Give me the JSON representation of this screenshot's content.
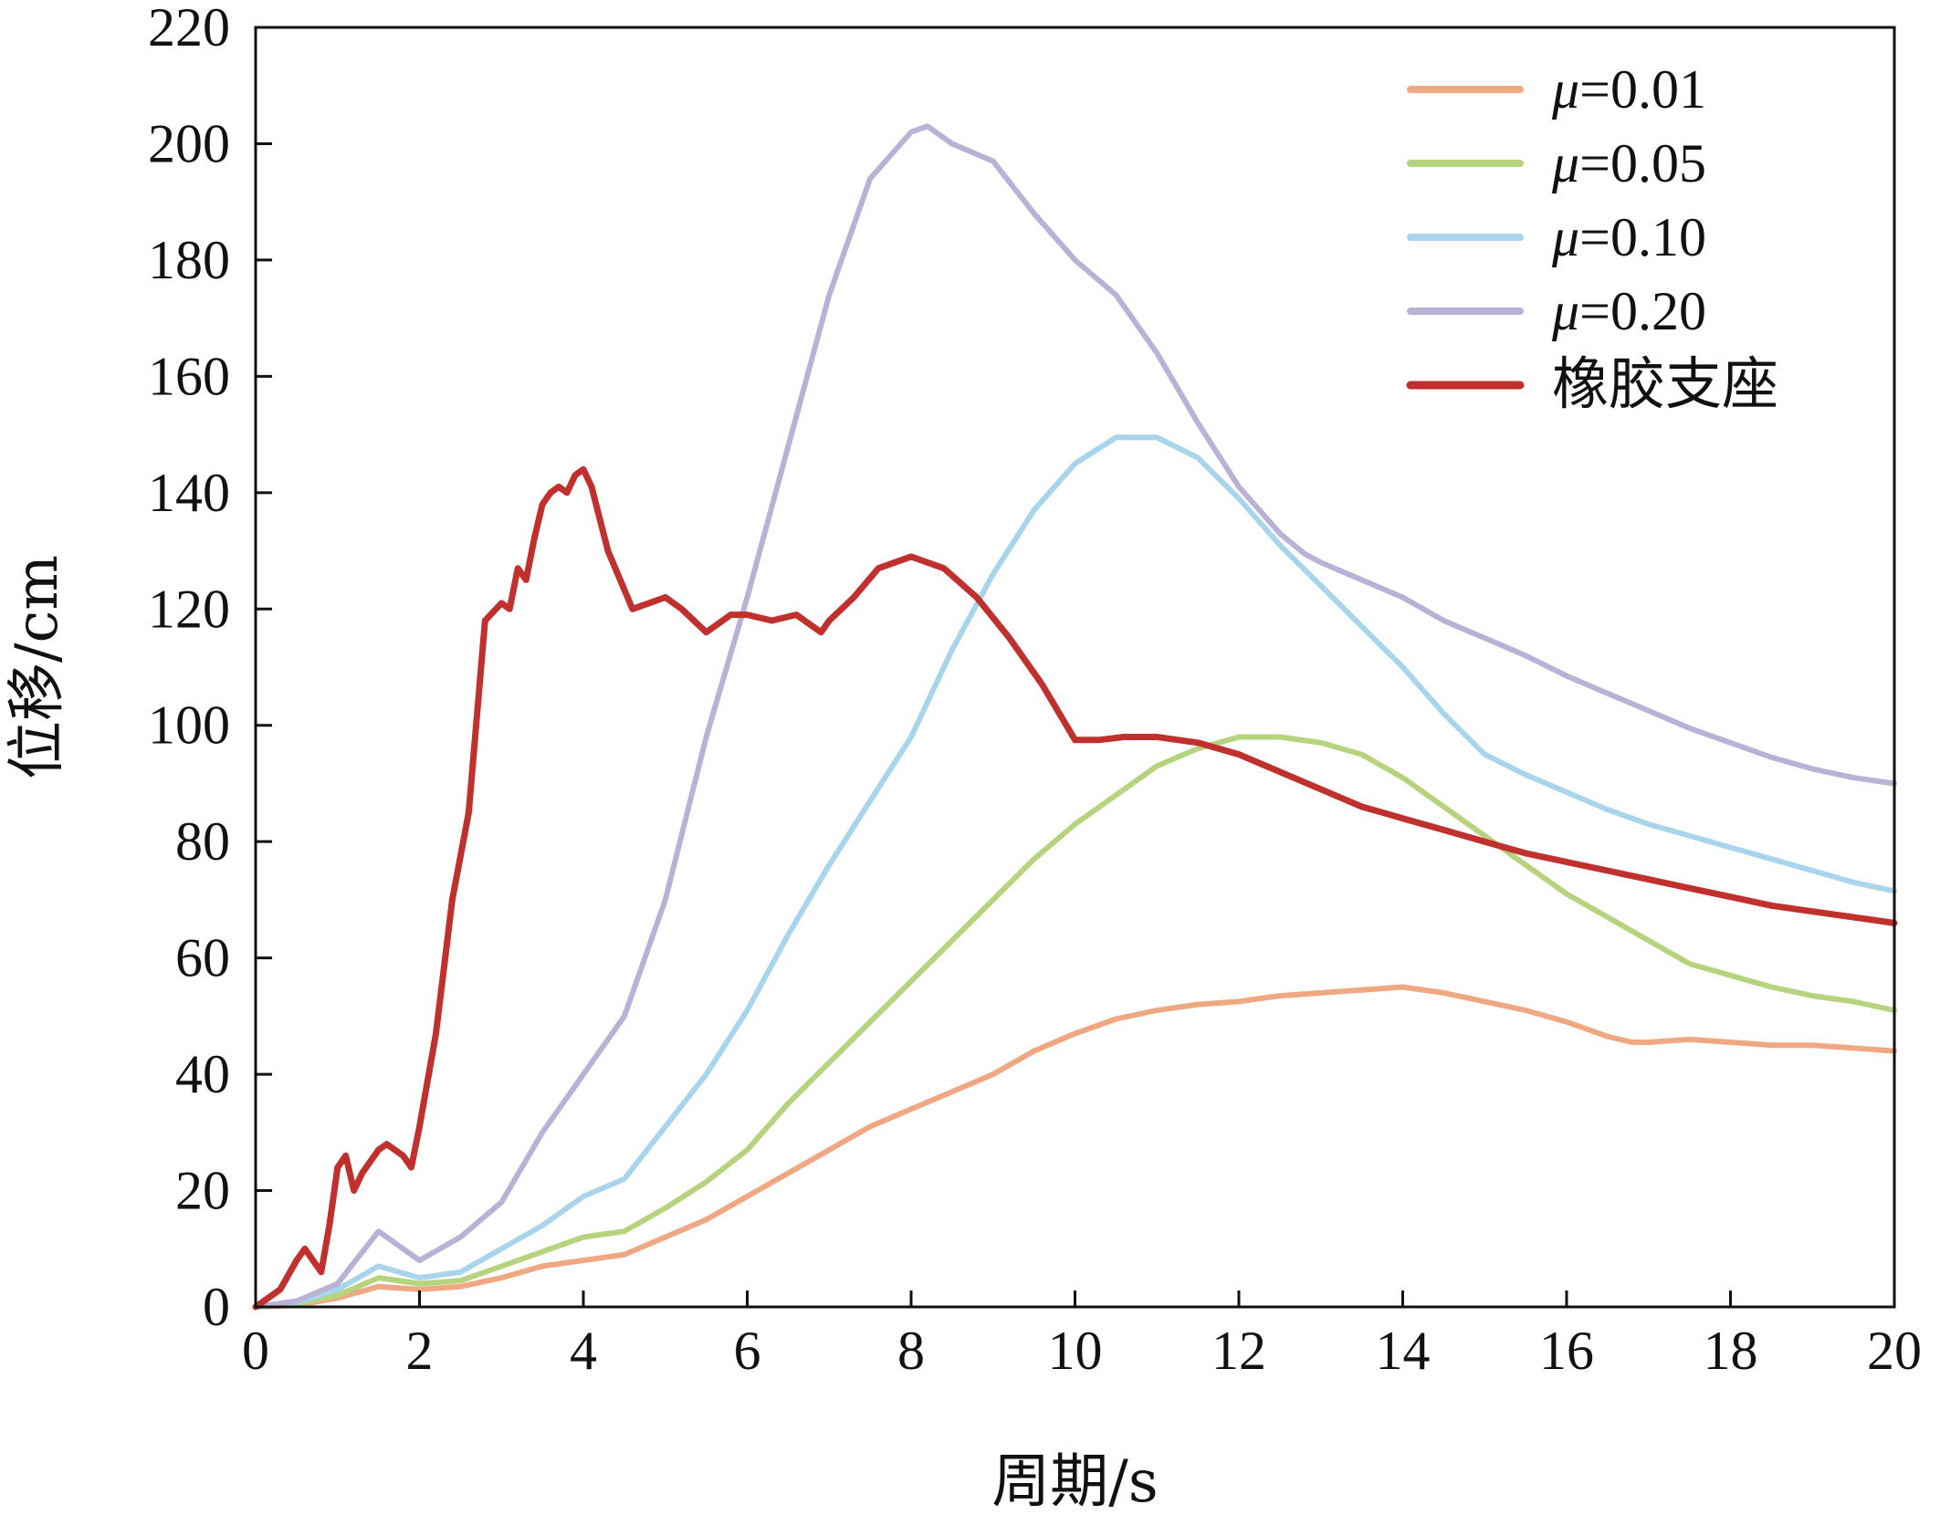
{
  "chart_data": {
    "type": "line",
    "xlabel": "周期/s",
    "ylabel": "位移/cm",
    "xlim": [
      0,
      20
    ],
    "ylim": [
      0,
      220
    ],
    "xticks": [
      "0",
      "2",
      "4",
      "6",
      "8",
      "10",
      "12",
      "14",
      "16",
      "18",
      "20"
    ],
    "yticks": [
      "0",
      "20",
      "40",
      "60",
      "80",
      "100",
      "120",
      "140",
      "160",
      "180",
      "200",
      "220"
    ],
    "grid": false,
    "legend_position": "top-right",
    "series": [
      {
        "name": "μ=0.01",
        "color": "#f0a882",
        "x": [
          0,
          0.5,
          1.0,
          1.5,
          2.0,
          2.5,
          3.0,
          3.5,
          4.0,
          4.5,
          5.0,
          5.5,
          6.0,
          6.5,
          7.0,
          7.5,
          8.0,
          8.5,
          9.0,
          9.5,
          10.0,
          10.5,
          11.0,
          11.5,
          12.0,
          12.5,
          13.0,
          13.5,
          14.0,
          14.5,
          15.0,
          15.5,
          16.0,
          16.5,
          16.8,
          17.0,
          17.5,
          18.0,
          18.5,
          19.0,
          19.5,
          20.0
        ],
        "y": [
          0,
          0.3,
          1.5,
          3.5,
          3.0,
          3.5,
          5.0,
          7.0,
          8.0,
          9.0,
          12.0,
          15.0,
          19.0,
          23.0,
          27.0,
          31.0,
          34.0,
          37.0,
          40.0,
          44.0,
          47.0,
          49.5,
          51.0,
          52.0,
          52.5,
          53.5,
          54.0,
          54.5,
          55.0,
          54.0,
          52.5,
          51.0,
          49.0,
          46.5,
          45.5,
          45.5,
          46.0,
          45.5,
          45.0,
          45.0,
          44.5,
          44.0
        ]
      },
      {
        "name": "μ=0.05",
        "color": "#b6d47d",
        "x": [
          0,
          0.5,
          1.0,
          1.5,
          2.0,
          2.5,
          3.0,
          3.5,
          4.0,
          4.5,
          5.0,
          5.5,
          6.0,
          6.5,
          7.0,
          7.5,
          8.0,
          8.5,
          9.0,
          9.5,
          10.0,
          10.5,
          11.0,
          11.5,
          12.0,
          12.5,
          13.0,
          13.5,
          14.0,
          14.5,
          15.0,
          15.5,
          16.0,
          16.5,
          17.0,
          17.5,
          18.0,
          18.5,
          19.0,
          19.5,
          20.0
        ],
        "y": [
          0,
          0.5,
          2.0,
          5.0,
          4.0,
          4.5,
          7.0,
          9.5,
          12.0,
          13.0,
          17.0,
          21.5,
          27.0,
          35.0,
          42.0,
          49.0,
          56.0,
          63.0,
          70.0,
          77.0,
          83.0,
          88.0,
          93.0,
          96.0,
          98.0,
          98.0,
          97.0,
          95.0,
          91.0,
          86.0,
          81.0,
          76.0,
          71.0,
          67.0,
          63.0,
          59.0,
          57.0,
          55.0,
          53.5,
          52.5,
          51.0
        ]
      },
      {
        "name": "μ=0.10",
        "color": "#a8d4ec",
        "x": [
          0,
          0.5,
          1.0,
          1.5,
          2.0,
          2.5,
          3.0,
          3.5,
          4.0,
          4.5,
          5.0,
          5.5,
          6.0,
          6.5,
          7.0,
          7.5,
          8.0,
          8.5,
          9.0,
          9.5,
          10.0,
          10.5,
          11.0,
          11.5,
          12.0,
          12.5,
          13.0,
          13.5,
          14.0,
          14.5,
          15.0,
          15.5,
          16.0,
          16.5,
          17.0,
          17.5,
          18.0,
          18.5,
          19.0,
          19.5,
          20.0
        ],
        "y": [
          0,
          0.8,
          3.0,
          7.0,
          5.0,
          6.0,
          10.0,
          14.0,
          19.0,
          22.0,
          31.0,
          40.0,
          51.0,
          64.0,
          76.0,
          87.0,
          98.0,
          113.0,
          126.0,
          137.0,
          145.0,
          149.5,
          149.5,
          146.0,
          139.0,
          131.0,
          124.0,
          117.0,
          110.0,
          102.0,
          95.0,
          91.5,
          88.5,
          85.5,
          83.0,
          81.0,
          79.0,
          77.0,
          75.0,
          73.0,
          71.5
        ]
      },
      {
        "name": "μ=0.20",
        "color": "#b9b2d6",
        "x": [
          0,
          0.5,
          1.0,
          1.5,
          2.0,
          2.5,
          3.0,
          3.5,
          4.0,
          4.5,
          5.0,
          5.5,
          6.0,
          6.5,
          7.0,
          7.5,
          8.0,
          8.2,
          8.5,
          9.0,
          9.5,
          10.0,
          10.5,
          11.0,
          11.5,
          12.0,
          12.5,
          12.8,
          13.0,
          13.5,
          14.0,
          14.5,
          15.0,
          15.5,
          16.0,
          16.5,
          17.0,
          17.5,
          18.0,
          18.5,
          19.0,
          19.5,
          20.0
        ],
        "y": [
          0,
          1.0,
          4.0,
          13.0,
          8.0,
          12.0,
          18.0,
          30.0,
          40.0,
          50.0,
          70.0,
          98.0,
          122.0,
          148.0,
          174.0,
          194.0,
          202.0,
          203.0,
          200.0,
          197.0,
          188.0,
          180.0,
          174.0,
          164.0,
          152.0,
          141.0,
          133.0,
          129.5,
          128.0,
          125.0,
          122.0,
          118.0,
          115.0,
          112.0,
          108.5,
          105.5,
          102.5,
          99.5,
          97.0,
          94.5,
          92.5,
          91.0,
          90.0
        ]
      },
      {
        "name": "橡胶支座",
        "color": "#c0302c",
        "x": [
          0,
          0.3,
          0.5,
          0.6,
          0.8,
          0.9,
          1.0,
          1.1,
          1.2,
          1.3,
          1.5,
          1.6,
          1.8,
          1.9,
          2.0,
          2.2,
          2.4,
          2.6,
          2.8,
          3.0,
          3.1,
          3.2,
          3.3,
          3.4,
          3.5,
          3.6,
          3.7,
          3.8,
          3.9,
          4.0,
          4.1,
          4.3,
          4.6,
          4.8,
          5.0,
          5.2,
          5.5,
          5.8,
          6.0,
          6.3,
          6.6,
          6.9,
          7.0,
          7.3,
          7.6,
          8.0,
          8.4,
          8.8,
          9.2,
          9.6,
          10.0,
          10.3,
          10.6,
          11.0,
          11.5,
          12.0,
          12.5,
          13.0,
          13.5,
          14.0,
          14.5,
          15.0,
          15.5,
          16.0,
          16.5,
          17.0,
          17.5,
          18.0,
          18.5,
          19.0,
          19.5,
          20.0
        ],
        "y": [
          0,
          3.0,
          8.0,
          10.0,
          6.0,
          14.0,
          24.0,
          26.0,
          20.0,
          23.0,
          27.0,
          28.0,
          26.0,
          24.0,
          31.0,
          47.0,
          70.0,
          85.0,
          118.0,
          121.0,
          120.0,
          127.0,
          125.0,
          132.0,
          138.0,
          140.0,
          141.0,
          140.0,
          143.0,
          144.0,
          141.0,
          130.0,
          120.0,
          121.0,
          122.0,
          120.0,
          116.0,
          119.0,
          119.0,
          118.0,
          119.0,
          116.0,
          118.0,
          122.0,
          127.0,
          129.0,
          127.0,
          122.0,
          115.0,
          107.0,
          97.5,
          97.5,
          98.0,
          98.0,
          97.0,
          95.0,
          92.0,
          89.0,
          86.0,
          84.0,
          82.0,
          80.0,
          78.0,
          76.5,
          75.0,
          73.5,
          72.0,
          70.5,
          69.0,
          68.0,
          67.0,
          66.0
        ]
      }
    ]
  }
}
